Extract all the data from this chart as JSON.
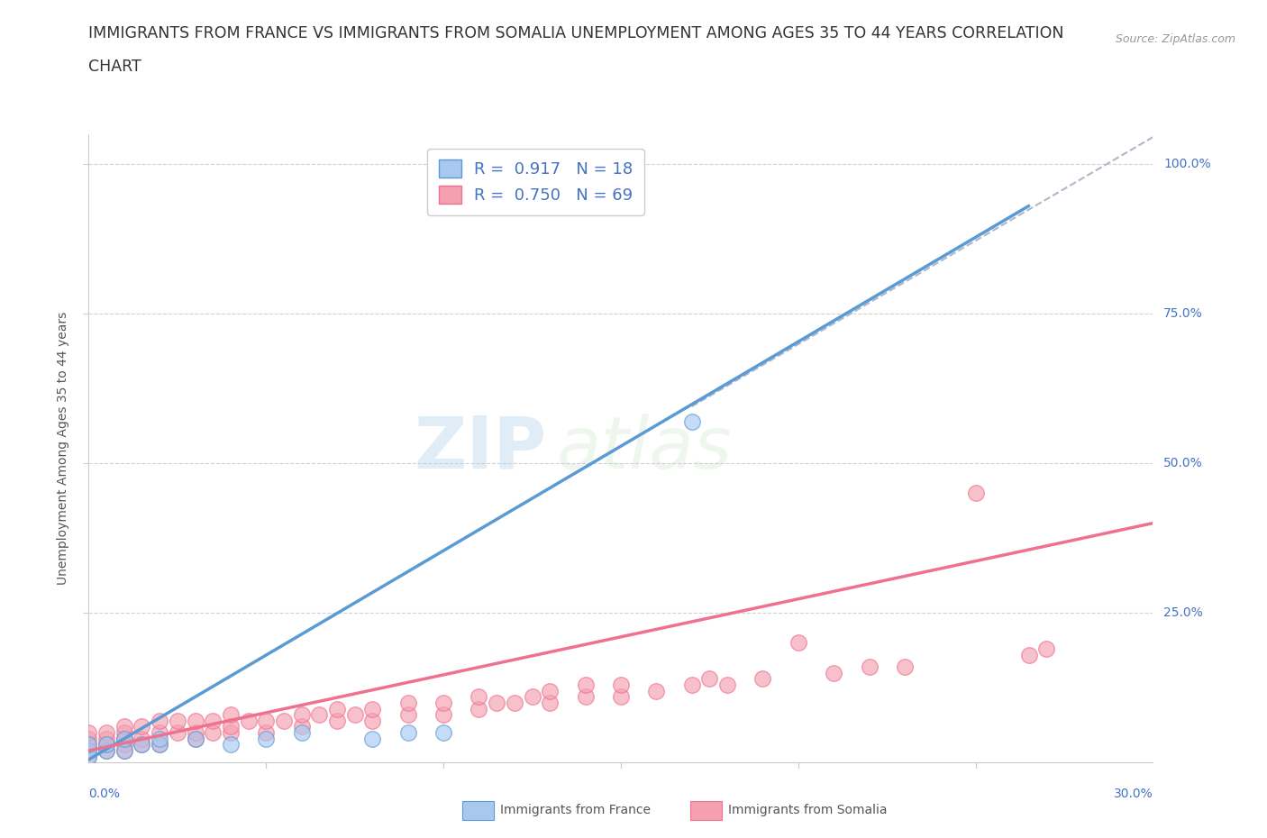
{
  "title_line1": "IMMIGRANTS FROM FRANCE VS IMMIGRANTS FROM SOMALIA UNEMPLOYMENT AMONG AGES 35 TO 44 YEARS CORRELATION",
  "title_line2": "CHART",
  "source_text": "Source: ZipAtlas.com",
  "ylabel": "Unemployment Among Ages 35 to 44 years",
  "xlim": [
    0.0,
    0.3
  ],
  "ylim": [
    0.0,
    1.05
  ],
  "ytick_vals": [
    0.25,
    0.5,
    0.75,
    1.0
  ],
  "ytick_labels": [
    "25.0%",
    "50.0%",
    "75.0%",
    "100.0%"
  ],
  "france_color": "#a8c8f0",
  "somalia_color": "#f4a0b0",
  "france_line_color": "#5b9bd5",
  "somalia_line_color": "#f07090",
  "dashed_line_color": "#b0b8c8",
  "R_france": "0.917",
  "N_france": "18",
  "R_somalia": "0.750",
  "N_somalia": "69",
  "legend_label_france": "Immigrants from France",
  "legend_label_somalia": "Immigrants from Somalia",
  "watermark_zip": "ZIP",
  "watermark_atlas": "atlas",
  "france_scatter_x": [
    0.0,
    0.0,
    0.0,
    0.005,
    0.005,
    0.01,
    0.01,
    0.015,
    0.02,
    0.02,
    0.03,
    0.04,
    0.05,
    0.06,
    0.08,
    0.09,
    0.1,
    0.17
  ],
  "france_scatter_y": [
    0.01,
    0.02,
    0.03,
    0.02,
    0.03,
    0.02,
    0.04,
    0.03,
    0.03,
    0.04,
    0.04,
    0.03,
    0.04,
    0.05,
    0.04,
    0.05,
    0.05,
    0.57
  ],
  "somalia_scatter_x": [
    0.0,
    0.0,
    0.0,
    0.0,
    0.0,
    0.005,
    0.005,
    0.005,
    0.005,
    0.01,
    0.01,
    0.01,
    0.01,
    0.01,
    0.015,
    0.015,
    0.015,
    0.02,
    0.02,
    0.02,
    0.025,
    0.025,
    0.03,
    0.03,
    0.03,
    0.035,
    0.035,
    0.04,
    0.04,
    0.04,
    0.045,
    0.05,
    0.05,
    0.055,
    0.06,
    0.06,
    0.065,
    0.07,
    0.07,
    0.075,
    0.08,
    0.08,
    0.09,
    0.09,
    0.1,
    0.1,
    0.11,
    0.11,
    0.115,
    0.12,
    0.125,
    0.13,
    0.13,
    0.14,
    0.14,
    0.15,
    0.15,
    0.16,
    0.17,
    0.175,
    0.18,
    0.19,
    0.2,
    0.21,
    0.22,
    0.23,
    0.25,
    0.265,
    0.27
  ],
  "somalia_scatter_y": [
    0.01,
    0.02,
    0.03,
    0.04,
    0.05,
    0.02,
    0.03,
    0.04,
    0.05,
    0.02,
    0.03,
    0.04,
    0.05,
    0.06,
    0.03,
    0.04,
    0.06,
    0.03,
    0.05,
    0.07,
    0.05,
    0.07,
    0.04,
    0.05,
    0.07,
    0.05,
    0.07,
    0.05,
    0.06,
    0.08,
    0.07,
    0.05,
    0.07,
    0.07,
    0.06,
    0.08,
    0.08,
    0.07,
    0.09,
    0.08,
    0.07,
    0.09,
    0.08,
    0.1,
    0.08,
    0.1,
    0.09,
    0.11,
    0.1,
    0.1,
    0.11,
    0.1,
    0.12,
    0.11,
    0.13,
    0.11,
    0.13,
    0.12,
    0.13,
    0.14,
    0.13,
    0.14,
    0.2,
    0.15,
    0.16,
    0.16,
    0.45,
    0.18,
    0.19
  ],
  "france_trend_x": [
    0.0,
    0.265
  ],
  "france_trend_y": [
    0.005,
    0.93
  ],
  "somalia_trend_x": [
    0.0,
    0.3
  ],
  "somalia_trend_y": [
    0.02,
    0.4
  ],
  "dashed_trend_x": [
    0.17,
    0.3
  ],
  "dashed_trend_y": [
    0.595,
    1.045
  ],
  "background_color": "#ffffff",
  "grid_color": "#cccccc",
  "axis_color": "#cccccc",
  "tick_color": "#4472c4",
  "title_fontsize": 12.5,
  "axis_label_fontsize": 10,
  "legend_fontsize": 13
}
